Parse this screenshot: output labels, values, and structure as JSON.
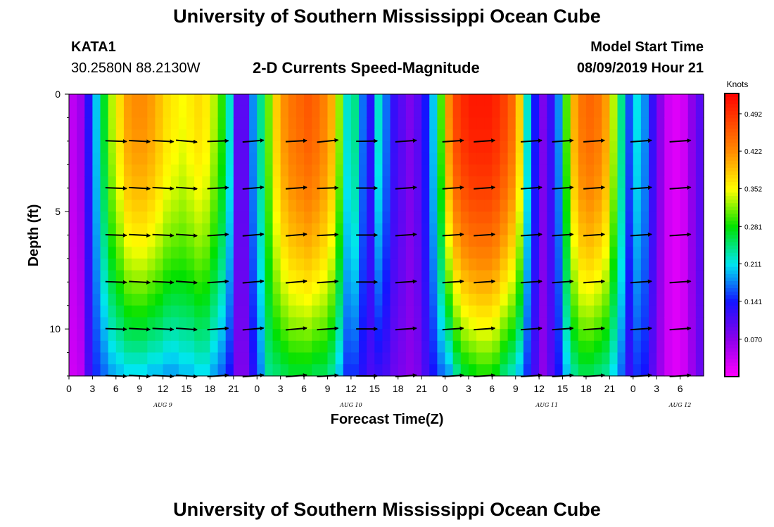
{
  "page": {
    "title_top": "University of Southern Mississippi Ocean Cube",
    "title_bottom": "University of Southern Mississippi Ocean Cube",
    "station_id": "KATA1",
    "station_coords": "30.2580N 88.2130W",
    "model_start_label": "Model Start Time",
    "model_start_value": "08/09/2019 Hour 21"
  },
  "chart_data": {
    "type": "heatmap",
    "title": "2-D Currents Speed-Magnitude",
    "xlabel": "Forecast Time(Z)",
    "ylabel": "Depth (ft)",
    "x_range_hours": [
      0,
      81
    ],
    "y_range_ft": [
      0,
      12
    ],
    "y_ticks": [
      0,
      5,
      10
    ],
    "x_tick_labels": [
      "0",
      "3",
      "6",
      "9",
      "12",
      "15",
      "18",
      "21",
      "0",
      "3",
      "6",
      "9",
      "12",
      "15",
      "18",
      "21",
      "0",
      "3",
      "6",
      "9",
      "12",
      "15",
      "18",
      "21",
      "0",
      "3",
      "6"
    ],
    "date_labels": [
      {
        "text": "AUG 9",
        "hour": 12
      },
      {
        "text": "AUG 10",
        "hour": 36
      },
      {
        "text": "AUG 11",
        "hour": 61
      },
      {
        "text": "AUG 12",
        "hour": 78
      }
    ],
    "colorbar": {
      "unit": "Knots",
      "min": 0.0,
      "max": 0.53,
      "tick_labels": [
        "0.492",
        "0.422",
        "0.352",
        "0.281",
        "0.211",
        "0.141",
        "0.070"
      ],
      "tick_values": [
        0.492,
        0.422,
        0.352,
        0.281,
        0.211,
        0.141,
        0.07
      ]
    },
    "columns": [
      {
        "t": 0.5,
        "top": 0.04,
        "bot": 0.03
      },
      {
        "t": 1.5,
        "top": 0.06,
        "bot": 0.04
      },
      {
        "t": 2.5,
        "top": 0.13,
        "bot": 0.11
      },
      {
        "t": 3.5,
        "top": 0.2,
        "bot": 0.15
      },
      {
        "t": 4.5,
        "top": 0.27,
        "bot": 0.17
      },
      {
        "t": 5.5,
        "top": 0.33,
        "bot": 0.19
      },
      {
        "t": 6.5,
        "top": 0.37,
        "bot": 0.2
      },
      {
        "t": 7.5,
        "top": 0.41,
        "bot": 0.21
      },
      {
        "t": 8.5,
        "top": 0.42,
        "bot": 0.21
      },
      {
        "t": 9.5,
        "top": 0.42,
        "bot": 0.21
      },
      {
        "t": 10.5,
        "top": 0.41,
        "bot": 0.2
      },
      {
        "t": 11.5,
        "top": 0.39,
        "bot": 0.2
      },
      {
        "t": 12.5,
        "top": 0.37,
        "bot": 0.19
      },
      {
        "t": 13.5,
        "top": 0.36,
        "bot": 0.19
      },
      {
        "t": 14.5,
        "top": 0.35,
        "bot": 0.2
      },
      {
        "t": 15.5,
        "top": 0.36,
        "bot": 0.2
      },
      {
        "t": 16.5,
        "top": 0.37,
        "bot": 0.21
      },
      {
        "t": 17.5,
        "top": 0.36,
        "bot": 0.21
      },
      {
        "t": 18.5,
        "top": 0.33,
        "bot": 0.19
      },
      {
        "t": 19.5,
        "top": 0.29,
        "bot": 0.17
      },
      {
        "t": 20.5,
        "top": 0.22,
        "bot": 0.14
      },
      {
        "t": 21.5,
        "top": 0.1,
        "bot": 0.08
      },
      {
        "t": 22.5,
        "top": 0.1,
        "bot": 0.08
      },
      {
        "t": 23.5,
        "top": 0.18,
        "bot": 0.13
      },
      {
        "t": 24.5,
        "top": 0.24,
        "bot": 0.18
      },
      {
        "t": 25.5,
        "top": 0.31,
        "bot": 0.24
      },
      {
        "t": 26.5,
        "top": 0.38,
        "bot": 0.25
      },
      {
        "t": 27.5,
        "top": 0.42,
        "bot": 0.26
      },
      {
        "t": 28.5,
        "top": 0.44,
        "bot": 0.27
      },
      {
        "t": 29.5,
        "top": 0.45,
        "bot": 0.27
      },
      {
        "t": 30.5,
        "top": 0.46,
        "bot": 0.27
      },
      {
        "t": 31.5,
        "top": 0.45,
        "bot": 0.26
      },
      {
        "t": 32.5,
        "top": 0.43,
        "bot": 0.26
      },
      {
        "t": 33.5,
        "top": 0.4,
        "bot": 0.24
      },
      {
        "t": 34.5,
        "top": 0.32,
        "bot": 0.2
      },
      {
        "t": 35.5,
        "top": 0.22,
        "bot": 0.15
      },
      {
        "t": 36.5,
        "top": 0.24,
        "bot": 0.15
      },
      {
        "t": 37.5,
        "top": 0.17,
        "bot": 0.13
      },
      {
        "t": 38.5,
        "top": 0.13,
        "bot": 0.11
      },
      {
        "t": 39.5,
        "top": 0.22,
        "bot": 0.12
      },
      {
        "t": 40.5,
        "top": 0.17,
        "bot": 0.11
      },
      {
        "t": 41.5,
        "top": 0.12,
        "bot": 0.09
      },
      {
        "t": 42.5,
        "top": 0.1,
        "bot": 0.08
      },
      {
        "t": 43.5,
        "top": 0.08,
        "bot": 0.07
      },
      {
        "t": 44.5,
        "top": 0.1,
        "bot": 0.08
      },
      {
        "t": 45.5,
        "top": 0.14,
        "bot": 0.11
      },
      {
        "t": 46.5,
        "top": 0.2,
        "bot": 0.14
      },
      {
        "t": 47.5,
        "top": 0.3,
        "bot": 0.17
      },
      {
        "t": 48.5,
        "top": 0.42,
        "bot": 0.19
      },
      {
        "t": 49.5,
        "top": 0.48,
        "bot": 0.24
      },
      {
        "t": 50.5,
        "top": 0.5,
        "bot": 0.27
      },
      {
        "t": 51.5,
        "top": 0.51,
        "bot": 0.28
      },
      {
        "t": 52.5,
        "top": 0.51,
        "bot": 0.29
      },
      {
        "t": 53.5,
        "top": 0.51,
        "bot": 0.29
      },
      {
        "t": 54.5,
        "top": 0.5,
        "bot": 0.28
      },
      {
        "t": 55.5,
        "top": 0.48,
        "bot": 0.25
      },
      {
        "t": 56.5,
        "top": 0.45,
        "bot": 0.23
      },
      {
        "t": 57.5,
        "top": 0.38,
        "bot": 0.2
      },
      {
        "t": 58.5,
        "top": 0.22,
        "bot": 0.15
      },
      {
        "t": 59.5,
        "top": 0.14,
        "bot": 0.11
      },
      {
        "t": 60.5,
        "top": 0.08,
        "bot": 0.07
      },
      {
        "t": 61.5,
        "top": 0.12,
        "bot": 0.1
      },
      {
        "t": 62.5,
        "top": 0.18,
        "bot": 0.14
      },
      {
        "t": 63.5,
        "top": 0.3,
        "bot": 0.2
      },
      {
        "t": 64.5,
        "top": 0.4,
        "bot": 0.24
      },
      {
        "t": 65.5,
        "top": 0.44,
        "bot": 0.26
      },
      {
        "t": 66.5,
        "top": 0.45,
        "bot": 0.26
      },
      {
        "t": 67.5,
        "top": 0.44,
        "bot": 0.25
      },
      {
        "t": 68.5,
        "top": 0.41,
        "bot": 0.24
      },
      {
        "t": 69.5,
        "top": 0.33,
        "bot": 0.21
      },
      {
        "t": 70.5,
        "top": 0.24,
        "bot": 0.17
      },
      {
        "t": 71.5,
        "top": 0.16,
        "bot": 0.12
      },
      {
        "t": 72.5,
        "top": 0.21,
        "bot": 0.15
      },
      {
        "t": 73.5,
        "top": 0.18,
        "bot": 0.14
      },
      {
        "t": 74.5,
        "top": 0.12,
        "bot": 0.1
      },
      {
        "t": 75.5,
        "top": 0.07,
        "bot": 0.06
      },
      {
        "t": 76.5,
        "top": 0.03,
        "bot": 0.03
      },
      {
        "t": 77.5,
        "top": 0.02,
        "bot": 0.02
      },
      {
        "t": 78.5,
        "top": 0.03,
        "bot": 0.03
      },
      {
        "t": 79.5,
        "top": 0.07,
        "bot": 0.06
      },
      {
        "t": 80.5,
        "top": 0.1,
        "bot": 0.09
      }
    ],
    "depths_ft": [
      0.0,
      0.5,
      1.0,
      1.5,
      2.0,
      2.5,
      3.0,
      3.5,
      4.0,
      4.5,
      5.0,
      5.5,
      6.0,
      6.5,
      7.0,
      7.5,
      8.0,
      8.5,
      9.0,
      9.5,
      10.0,
      10.5,
      11.0,
      11.5
    ],
    "vectors": {
      "times": [
        6,
        9,
        12,
        15,
        19,
        23.5,
        29,
        33,
        38,
        43,
        49,
        53,
        59,
        63,
        67,
        73,
        78
      ],
      "depths": [
        2,
        4,
        6,
        8,
        10,
        12
      ],
      "angles_deg": [
        [
          -2,
          -3,
          -3,
          -5,
          2,
          5,
          3,
          6,
          1,
          4,
          4,
          4,
          4,
          4,
          4,
          4,
          4
        ],
        [
          -2,
          -3,
          -3,
          -4,
          3,
          5,
          4,
          2,
          0,
          4,
          4,
          4,
          4,
          4,
          4,
          4,
          4
        ],
        [
          -2,
          -3,
          -3,
          -4,
          4,
          5,
          5,
          3,
          0,
          4,
          4,
          4,
          4,
          4,
          4,
          4,
          4
        ],
        [
          -2,
          -3,
          -3,
          -4,
          4,
          5,
          5,
          4,
          0,
          4,
          4,
          4,
          4,
          4,
          4,
          4,
          4
        ],
        [
          -2,
          -3,
          -3,
          -4,
          4,
          5,
          5,
          4,
          0,
          4,
          4,
          4,
          4,
          4,
          4,
          4,
          4
        ],
        [
          -2,
          -3,
          -3,
          -4,
          4,
          5,
          5,
          4,
          0,
          4,
          4,
          4,
          4,
          4,
          4,
          4,
          4
        ]
      ]
    }
  }
}
